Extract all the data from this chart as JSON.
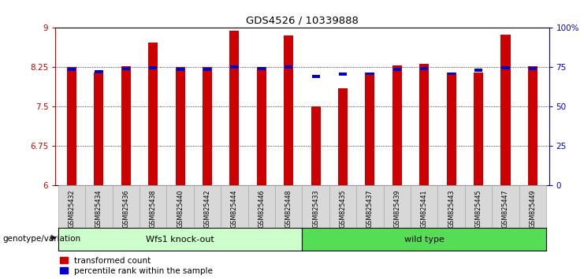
{
  "title": "GDS4526 / 10339888",
  "samples": [
    "GSM825432",
    "GSM825434",
    "GSM825436",
    "GSM825438",
    "GSM825440",
    "GSM825442",
    "GSM825444",
    "GSM825446",
    "GSM825448",
    "GSM825433",
    "GSM825435",
    "GSM825437",
    "GSM825439",
    "GSM825441",
    "GSM825443",
    "GSM825445",
    "GSM825447",
    "GSM825449"
  ],
  "red_values": [
    8.26,
    8.15,
    8.27,
    8.72,
    8.26,
    8.26,
    8.95,
    8.26,
    8.85,
    7.5,
    7.85,
    8.15,
    8.28,
    8.32,
    8.15,
    8.15,
    8.87,
    8.27
  ],
  "blue_values": [
    8.18,
    8.135,
    8.195,
    8.21,
    8.185,
    8.18,
    8.225,
    8.195,
    8.225,
    8.05,
    8.09,
    8.1,
    8.18,
    8.2,
    8.1,
    8.165,
    8.21,
    8.195
  ],
  "group1_label": "Wfs1 knock-out",
  "group2_label": "wild type",
  "group1_count": 9,
  "group2_count": 9,
  "ymin": 6,
  "ymax": 9,
  "y_ticks": [
    6,
    6.75,
    7.5,
    8.25,
    9
  ],
  "y_tick_labels": [
    "6",
    "6.75",
    "7.5",
    "8.25",
    "9"
  ],
  "right_yticks": [
    0,
    25,
    50,
    75,
    100
  ],
  "right_yticklabels": [
    "0",
    "25",
    "50",
    "75",
    "100%"
  ],
  "bar_color": "#cc0000",
  "blue_color": "#0000cc",
  "group1_bg": "#ccffcc",
  "group2_bg": "#55dd55",
  "xtick_bg": "#d8d8d8",
  "plot_bg": "#ffffff",
  "xlabel_genotype": "genotype/variation",
  "legend_red": "transformed count",
  "legend_blue": "percentile rank within the sample",
  "bar_width": 0.35
}
